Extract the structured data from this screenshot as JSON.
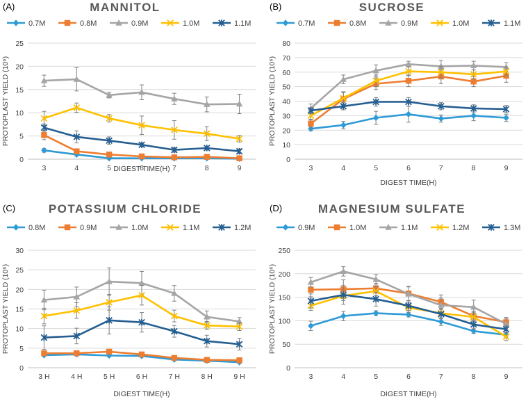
{
  "chart_data": [
    {
      "type": "line",
      "panel_label": "(A)",
      "title": "MANNITOL",
      "xlabel": "DIGEST TIME(H)",
      "ylabel": "PROTOPLAST YIELD (10⁶)",
      "x": [
        3,
        4,
        5,
        6,
        7,
        8,
        9
      ],
      "tick_labels": [
        "3",
        "4",
        "5",
        "6",
        "7",
        "8",
        "9"
      ],
      "ylim": [
        0,
        25
      ],
      "yticks": [
        0,
        5,
        10,
        15,
        20,
        25
      ],
      "legend_position": "top",
      "series": [
        {
          "name": "0.7M",
          "color": "#2E9BD6",
          "marker": "diamond",
          "values": [
            1.9,
            1.0,
            0.2,
            0.2,
            0.2,
            0.2,
            0.1
          ],
          "errors": [
            0.4,
            0.3,
            0.2,
            0.2,
            0.2,
            0.2,
            0.1
          ]
        },
        {
          "name": "0.8M",
          "color": "#ED7D31",
          "marker": "square",
          "values": [
            5.2,
            1.7,
            1.0,
            0.6,
            0.4,
            0.5,
            0.2
          ],
          "errors": [
            1.0,
            0.5,
            0.4,
            0.3,
            0.3,
            0.3,
            0.2
          ]
        },
        {
          "name": "0.9M",
          "color": "#A5A5A5",
          "marker": "triangle",
          "values": [
            16.9,
            17.2,
            13.8,
            14.4,
            13.0,
            11.8,
            11.9
          ],
          "errors": [
            1.2,
            2.5,
            0.6,
            1.6,
            1.2,
            1.6,
            2.1
          ]
        },
        {
          "name": "1.0M",
          "color": "#FFC000",
          "marker": "x",
          "values": [
            8.8,
            11.1,
            8.8,
            7.3,
            6.3,
            5.5,
            4.4
          ],
          "errors": [
            1.5,
            1.0,
            0.8,
            2.0,
            2.0,
            1.5,
            0.7
          ]
        },
        {
          "name": "1.1M",
          "color": "#255E91",
          "marker": "star",
          "values": [
            6.8,
            4.8,
            4.0,
            3.1,
            2.0,
            2.4,
            1.7
          ],
          "errors": [
            0.8,
            1.3,
            0.8,
            0.4,
            0.5,
            0.4,
            0.5
          ]
        }
      ]
    },
    {
      "type": "line",
      "panel_label": "(B)",
      "title": "SUCROSE",
      "xlabel": "DIGEST TIME(H)",
      "ylabel": "PROTOPLAST YIELD (10⁶)",
      "x": [
        3,
        4,
        5,
        6,
        7,
        8,
        9
      ],
      "tick_labels": [
        "3",
        "4",
        "5",
        "6",
        "7",
        "8",
        "9"
      ],
      "ylim": [
        0,
        80
      ],
      "yticks": [
        0,
        10,
        20,
        30,
        40,
        50,
        60,
        70,
        80
      ],
      "legend_position": "top",
      "series": [
        {
          "name": "0.7M",
          "color": "#2E9BD6",
          "marker": "diamond",
          "values": [
            21,
            23.5,
            28.5,
            31,
            28,
            30,
            28.5
          ],
          "errors": [
            1.5,
            2.5,
            4.5,
            5.5,
            2.5,
            3.5,
            2.5
          ]
        },
        {
          "name": "0.8M",
          "color": "#ED7D31",
          "marker": "square",
          "values": [
            24.5,
            41.5,
            52,
            54,
            57,
            53.5,
            57.5
          ],
          "errors": [
            3,
            5,
            4,
            4,
            5,
            3.5,
            4.5
          ]
        },
        {
          "name": "0.9M",
          "color": "#A5A5A5",
          "marker": "triangle",
          "values": [
            35,
            55,
            61,
            65.5,
            64,
            64.5,
            63.5
          ],
          "errors": [
            3,
            3,
            4,
            2,
            4,
            3,
            3
          ]
        },
        {
          "name": "1.0M",
          "color": "#FFC000",
          "marker": "x",
          "values": [
            30,
            42,
            54,
            60.5,
            60,
            58.5,
            60.5
          ],
          "errors": [
            3,
            4,
            4,
            3,
            4,
            3,
            3
          ]
        },
        {
          "name": "1.1M",
          "color": "#255E91",
          "marker": "star",
          "values": [
            33.5,
            36.5,
            39.5,
            39.5,
            36.5,
            35,
            34.5
          ],
          "errors": [
            2,
            2.5,
            3,
            3,
            2.5,
            2.5,
            2.5
          ]
        }
      ]
    },
    {
      "type": "line",
      "panel_label": "(C)",
      "title": "POTASSIUM CHLORIDE",
      "xlabel": "DIGEST TIME(H)",
      "ylabel": "PROTOPLAST YIELD (10⁶)",
      "x": [
        3,
        4,
        5,
        6,
        7,
        8,
        9
      ],
      "tick_labels": [
        "3 H",
        "4 H",
        "5 H",
        "6 H",
        "7 H",
        "8 H",
        "9 H"
      ],
      "ylim": [
        0,
        30
      ],
      "yticks": [
        0,
        5,
        10,
        15,
        20,
        25,
        30
      ],
      "legend_position": "top",
      "series": [
        {
          "name": "0.8M",
          "color": "#2E9BD6",
          "marker": "diamond",
          "values": [
            3.2,
            3.4,
            3.1,
            3.0,
            2.1,
            1.8,
            1.4
          ],
          "errors": [
            0.3,
            0.3,
            0.3,
            0.3,
            0.3,
            0.3,
            0.3
          ]
        },
        {
          "name": "0.9M",
          "color": "#ED7D31",
          "marker": "square",
          "values": [
            3.7,
            3.7,
            4.1,
            3.4,
            2.5,
            2.0,
            1.9
          ],
          "errors": [
            0.6,
            0.5,
            0.6,
            0.5,
            0.5,
            0.4,
            0.4
          ]
        },
        {
          "name": "1.0M",
          "color": "#A5A5A5",
          "marker": "triangle",
          "values": [
            17.3,
            18.1,
            22.0,
            21.6,
            19.0,
            13.0,
            11.8
          ],
          "errors": [
            2.5,
            2.5,
            3.5,
            3.0,
            2.0,
            1.5,
            1.0
          ]
        },
        {
          "name": "1.1M",
          "color": "#FFC000",
          "marker": "x",
          "values": [
            13.2,
            14.6,
            16.7,
            18.5,
            13.2,
            10.8,
            10.5
          ],
          "errors": [
            2.0,
            2.0,
            2.0,
            2.5,
            1.5,
            1.0,
            1.0
          ]
        },
        {
          "name": "1.2M",
          "color": "#255E91",
          "marker": "star",
          "values": [
            7.7,
            8.1,
            12.1,
            11.6,
            9.3,
            6.8,
            6.0
          ],
          "errors": [
            3.0,
            2.0,
            3.5,
            2.5,
            1.5,
            1.5,
            1.5
          ]
        }
      ]
    },
    {
      "type": "line",
      "panel_label": "(D)",
      "title": "MAGNESIUM SULFATE",
      "xlabel": "DIGEST TIME(H)",
      "ylabel": "PROTOPLAST YIELD (10⁶)",
      "x": [
        3,
        4,
        5,
        6,
        7,
        8,
        9
      ],
      "tick_labels": [
        "3",
        "4",
        "5",
        "6",
        "7",
        "8",
        "9"
      ],
      "ylim": [
        0,
        250
      ],
      "yticks": [
        0,
        50,
        100,
        150,
        200,
        250
      ],
      "legend_position": "top",
      "series": [
        {
          "name": "0.9M",
          "color": "#2E9BD6",
          "marker": "diamond",
          "values": [
            89,
            110,
            116,
            113,
            98,
            78,
            70
          ],
          "errors": [
            10,
            10,
            5,
            5,
            8,
            5,
            5
          ]
        },
        {
          "name": "1.0M",
          "color": "#ED7D31",
          "marker": "square",
          "values": [
            166,
            167,
            169,
            158,
            140,
            110,
            97
          ],
          "errors": [
            15,
            20,
            10,
            15,
            15,
            10,
            10
          ]
        },
        {
          "name": "1.1M",
          "color": "#A5A5A5",
          "marker": "triangle",
          "values": [
            182,
            205,
            188,
            157,
            133,
            129,
            93
          ],
          "errors": [
            10,
            10,
            10,
            15,
            15,
            15,
            12
          ]
        },
        {
          "name": "1.2M",
          "color": "#FFC000",
          "marker": "x",
          "values": [
            132,
            153,
            163,
            128,
            116,
            108,
            66
          ],
          "errors": [
            10,
            10,
            10,
            10,
            10,
            10,
            8
          ]
        },
        {
          "name": "1.3M",
          "color": "#255E91",
          "marker": "star",
          "values": [
            142,
            155,
            146,
            132,
            114,
            92,
            82
          ],
          "errors": [
            15,
            20,
            15,
            10,
            10,
            10,
            8
          ]
        }
      ]
    }
  ]
}
